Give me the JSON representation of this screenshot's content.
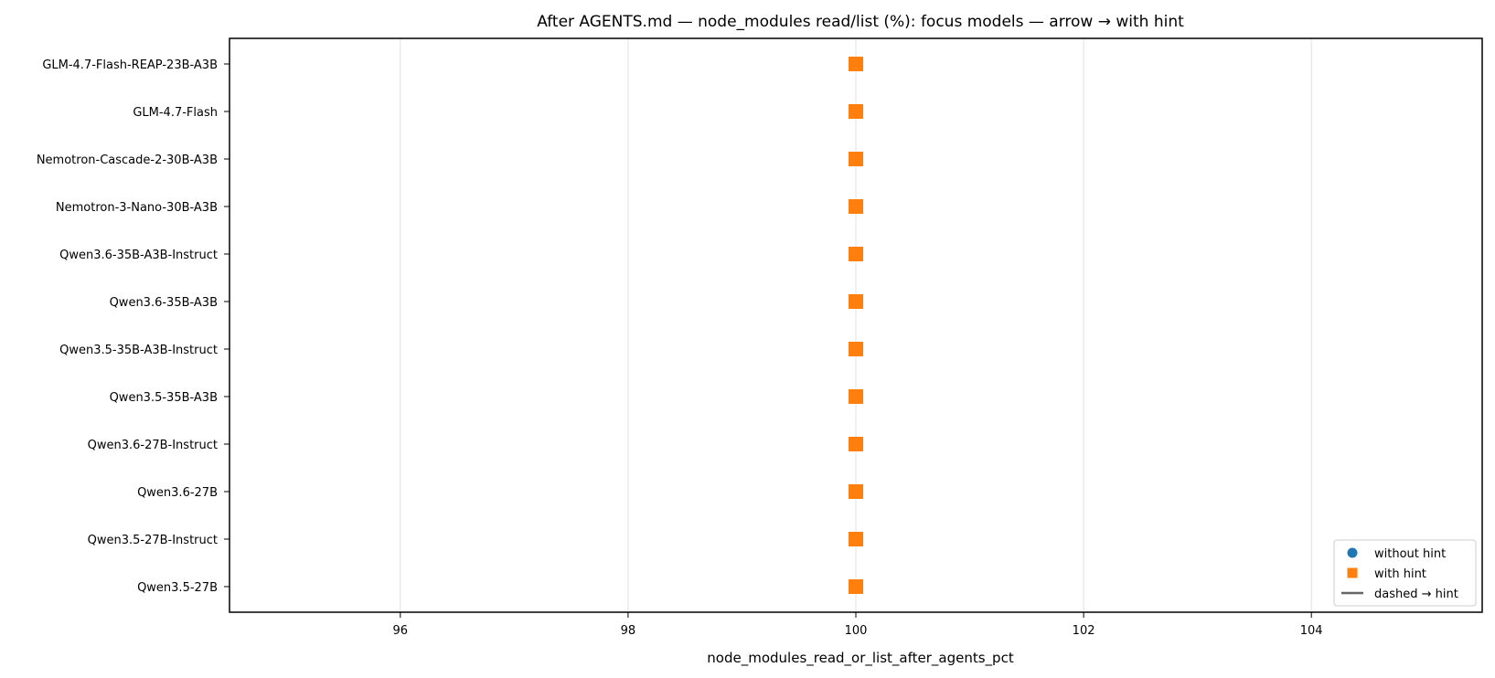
{
  "chart_data": {
    "type": "scatter",
    "title": "After AGENTS.md — node_modules read/list (%): focus models — arrow → with hint",
    "xlabel": "node_modules_read_or_list_after_agents_pct",
    "ylabel": "",
    "xlim": [
      94.5,
      105.5
    ],
    "xticks": [
      96,
      98,
      100,
      102,
      104
    ],
    "grid": "vertical",
    "categories": [
      "GLM-4.7-Flash-REAP-23B-A3B",
      "GLM-4.7-Flash",
      "Nemotron-Cascade-2-30B-A3B",
      "Nemotron-3-Nano-30B-A3B",
      "Qwen3.6-35B-A3B-Instruct",
      "Qwen3.6-35B-A3B",
      "Qwen3.5-35B-A3B-Instruct",
      "Qwen3.5-35B-A3B",
      "Qwen3.6-27B-Instruct",
      "Qwen3.6-27B",
      "Qwen3.5-27B-Instruct",
      "Qwen3.5-27B"
    ],
    "series": [
      {
        "name": "without hint",
        "marker": "circle",
        "color": "#1f77b4",
        "values": [
          100,
          100,
          100,
          100,
          100,
          100,
          100,
          100,
          100,
          100,
          100,
          100
        ]
      },
      {
        "name": "with hint",
        "marker": "square",
        "color": "#ff7f0e",
        "values": [
          100,
          100,
          100,
          100,
          100,
          100,
          100,
          100,
          100,
          100,
          100,
          100
        ]
      }
    ],
    "legend": {
      "placement": "lower-right",
      "entries": [
        {
          "label": "without hint",
          "marker": "circle",
          "color": "#1f77b4"
        },
        {
          "label": "with hint",
          "marker": "square",
          "color": "#ff7f0e"
        },
        {
          "label": "dashed → hint",
          "marker": "line",
          "color": "#666666"
        }
      ]
    }
  }
}
